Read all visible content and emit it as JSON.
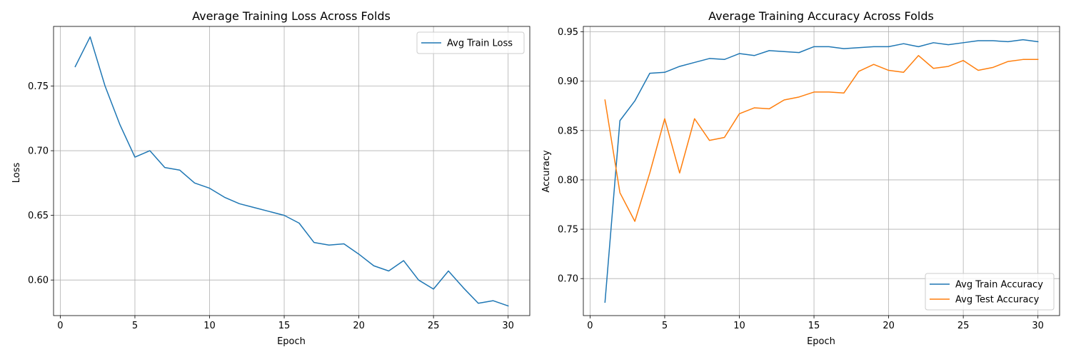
{
  "chart_data": [
    {
      "type": "line",
      "title": "Average Training Loss Across Folds",
      "xlabel": "Epoch",
      "ylabel": "Loss",
      "xlim": [
        -0.45,
        31.45
      ],
      "ylim": [
        0.5725,
        0.7961
      ],
      "xticks": [
        0,
        5,
        10,
        15,
        20,
        25,
        30
      ],
      "yticks": [
        0.6,
        0.65,
        0.7,
        0.75
      ],
      "grid": true,
      "legend": "upper right",
      "series": [
        {
          "name": "Avg Train Loss",
          "color": "#1f77b4",
          "x": [
            1,
            2,
            3,
            4,
            5,
            6,
            7,
            8,
            9,
            10,
            11,
            12,
            13,
            14,
            15,
            16,
            17,
            18,
            19,
            20,
            21,
            22,
            23,
            24,
            25,
            26,
            27,
            28,
            29,
            30
          ],
          "y": [
            0.765,
            0.788,
            0.75,
            0.72,
            0.695,
            0.7,
            0.687,
            0.685,
            0.675,
            0.671,
            0.664,
            0.659,
            0.656,
            0.653,
            0.65,
            0.644,
            0.629,
            0.627,
            0.628,
            0.62,
            0.611,
            0.607,
            0.615,
            0.6,
            0.593,
            0.607,
            0.594,
            0.582,
            0.584,
            0.58
          ]
        }
      ]
    },
    {
      "type": "line",
      "title": "Average Training Accuracy Across Folds",
      "xlabel": "Epoch",
      "ylabel": "Accuracy",
      "xlim": [
        -0.45,
        31.45
      ],
      "ylim": [
        0.6625,
        0.9555
      ],
      "xticks": [
        0,
        5,
        10,
        15,
        20,
        25,
        30
      ],
      "yticks": [
        0.7,
        0.75,
        0.8,
        0.85,
        0.9,
        0.95
      ],
      "grid": true,
      "legend": "lower right",
      "series": [
        {
          "name": "Avg Train Accuracy",
          "color": "#1f77b4",
          "x": [
            1,
            2,
            3,
            4,
            5,
            6,
            7,
            8,
            9,
            10,
            11,
            12,
            13,
            14,
            15,
            16,
            17,
            18,
            19,
            20,
            21,
            22,
            23,
            24,
            25,
            26,
            27,
            28,
            29,
            30
          ],
          "y": [
            0.676,
            0.86,
            0.88,
            0.908,
            0.909,
            0.915,
            0.919,
            0.923,
            0.922,
            0.928,
            0.926,
            0.931,
            0.93,
            0.929,
            0.935,
            0.935,
            0.933,
            0.934,
            0.935,
            0.935,
            0.938,
            0.935,
            0.939,
            0.937,
            0.939,
            0.941,
            0.941,
            0.94,
            0.942,
            0.94
          ]
        },
        {
          "name": "Avg Test Accuracy",
          "color": "#ff7f0e",
          "x": [
            1,
            2,
            3,
            4,
            5,
            6,
            7,
            8,
            9,
            10,
            11,
            12,
            13,
            14,
            15,
            16,
            17,
            18,
            19,
            20,
            21,
            22,
            23,
            24,
            25,
            26,
            27,
            28,
            29,
            30
          ],
          "y": [
            0.881,
            0.787,
            0.758,
            0.807,
            0.862,
            0.807,
            0.862,
            0.84,
            0.843,
            0.867,
            0.873,
            0.872,
            0.881,
            0.884,
            0.889,
            0.889,
            0.888,
            0.91,
            0.917,
            0.911,
            0.909,
            0.926,
            0.913,
            0.915,
            0.921,
            0.911,
            0.914,
            0.92,
            0.922,
            0.922
          ]
        }
      ]
    }
  ]
}
